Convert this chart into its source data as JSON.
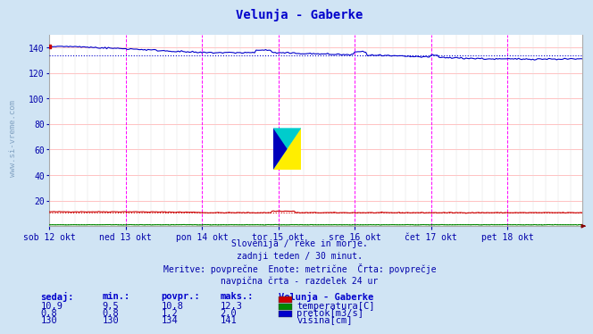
{
  "title": "Velunja - Gaberke",
  "bg_color": "#d0e4f4",
  "plot_bg_color": "#ffffff",
  "title_color": "#0000cc",
  "subtitle_lines": [
    "Slovenija / reke in morje.",
    "zadnji teden / 30 minut.",
    "Meritve: povprečne  Enote: metrične  Črta: povprečje",
    "navpična črta - razdelek 24 ur"
  ],
  "ylim": [
    0,
    150
  ],
  "yticks": [
    20,
    40,
    60,
    80,
    100,
    120,
    140
  ],
  "n_points": 336,
  "day_labels": [
    "sob 12 okt",
    "ned 13 okt",
    "pon 14 okt",
    "tor 15 okt",
    "sre 16 okt",
    "čet 17 okt",
    "pet 18 okt"
  ],
  "day_positions": [
    0,
    48,
    96,
    144,
    192,
    240,
    288
  ],
  "temperatura_color": "#cc0000",
  "pretok_color": "#008800",
  "visina_color": "#0000cc",
  "avg_temp": 10.8,
  "avg_pretok": 1.2,
  "avg_visina": 134,
  "min_temp": 9.5,
  "max_temp": 12.3,
  "min_pretok": 0.8,
  "max_pretok": 2.0,
  "min_visina": 130,
  "max_visina": 141,
  "cur_temp": 10.9,
  "cur_pretok": 0.8,
  "cur_visina": 130,
  "legend_labels": [
    "temperatura[C]",
    "pretok[m3/s]",
    "višina[cm]"
  ],
  "watermark": "www.si-vreme.com"
}
